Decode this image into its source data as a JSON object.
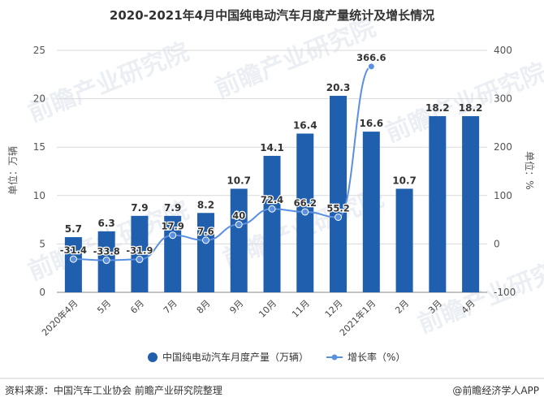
{
  "chart_data": {
    "type": "bar+line",
    "title": "2020-2021年4月中国纯电动汽车月度产量统计及增长情况",
    "categories": [
      "2020年4月",
      "5月",
      "6月",
      "7月",
      "8月",
      "9月",
      "10月",
      "11月",
      "12月",
      "2021年1月",
      "2月",
      "3月",
      "4月"
    ],
    "series": [
      {
        "name": "中国纯电动汽车月度产量（万辆）",
        "type": "bar",
        "axis": "left",
        "color": "#1f5fae",
        "values": [
          5.7,
          6.3,
          7.9,
          7.9,
          8.2,
          10.7,
          14.1,
          16.4,
          20.3,
          16.6,
          10.7,
          18.2,
          18.2
        ],
        "labels": [
          "5.7",
          "6.3",
          "7.9",
          "7.9",
          "8.2",
          "10.7",
          "14.1",
          "16.4",
          "20.3",
          "16.6",
          "10.7",
          "18.2",
          "18.2"
        ]
      },
      {
        "name": "增长率（%）",
        "type": "line",
        "axis": "right",
        "color": "#5b8fe0",
        "values": [
          -31.4,
          -33.8,
          -31.9,
          17.9,
          7.6,
          40,
          72.4,
          66.2,
          55.2,
          366.6,
          null,
          null,
          null
        ],
        "labels": [
          "-31.4",
          "-33.8",
          "-31.9",
          "17.9",
          "7.6",
          "40",
          "72.4",
          "66.2",
          "55.2",
          "366.6",
          "",
          "",
          ""
        ]
      }
    ],
    "y_left": {
      "label": "单位：万辆",
      "min": 0,
      "max": 25,
      "ticks": [
        "0",
        "5",
        "10",
        "15",
        "20",
        "25"
      ]
    },
    "y_right": {
      "label": "单位：%",
      "min": -100,
      "max": 400,
      "ticks": [
        "-100",
        "0",
        "100",
        "200",
        "300",
        "400"
      ]
    },
    "grid": true,
    "legend_position": "bottom"
  },
  "footer": {
    "source": "资料来源：中国汽车工业协会 前瞻产业研究院整理",
    "brand": "@前瞻经济学人APP"
  },
  "watermark": {
    "text": "前瞻产业研究院"
  }
}
